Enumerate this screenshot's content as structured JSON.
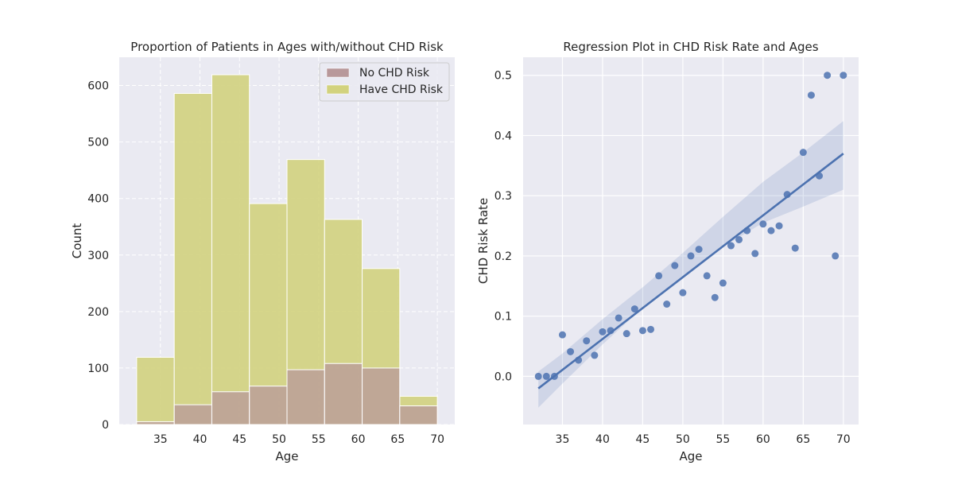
{
  "chart_data": [
    {
      "type": "bar",
      "title": "Proportion of Patients in Ages with/without CHD Risk",
      "xlabel": "Age",
      "ylabel": "Count",
      "xlim": [
        29.8,
        72.2
      ],
      "ylim": [
        0,
        650
      ],
      "xticks": [
        35,
        40,
        45,
        50,
        55,
        60,
        65,
        70
      ],
      "yticks": [
        0,
        100,
        200,
        300,
        400,
        500,
        600
      ],
      "grid": true,
      "legend_position": "top-right",
      "bins": [
        [
          32,
          36.75
        ],
        [
          36.75,
          41.5
        ],
        [
          41.5,
          46.25
        ],
        [
          46.25,
          51
        ],
        [
          51,
          55.75
        ],
        [
          55.75,
          60.5
        ],
        [
          60.5,
          65.25
        ],
        [
          65.25,
          70
        ]
      ],
      "series": [
        {
          "name": "No CHD Risk",
          "color": "#b8989a",
          "values": [
            5,
            35,
            58,
            68,
            97,
            108,
            100,
            33
          ]
        },
        {
          "name": "Have CHD Risk",
          "color": "#d2d27e",
          "values": [
            119,
            586,
            619,
            391,
            469,
            363,
            276,
            50
          ]
        }
      ]
    },
    {
      "type": "scatter",
      "title": "Regression Plot in CHD Risk Rate and Ages",
      "xlabel": "Age",
      "ylabel": "CHD Risk Rate",
      "xlim": [
        30.1,
        71.9
      ],
      "ylim": [
        -0.08,
        0.53
      ],
      "xticks": [
        35,
        40,
        45,
        50,
        55,
        60,
        65,
        70
      ],
      "yticks": [
        0.0,
        0.1,
        0.2,
        0.3,
        0.4,
        0.5
      ],
      "grid": true,
      "point_color": "#4c72b0",
      "points": [
        [
          32,
          0.0
        ],
        [
          33,
          0.0
        ],
        [
          34,
          0.0
        ],
        [
          35,
          0.069
        ],
        [
          36,
          0.041
        ],
        [
          37,
          0.027
        ],
        [
          38,
          0.059
        ],
        [
          39,
          0.035
        ],
        [
          40,
          0.074
        ],
        [
          41,
          0.076
        ],
        [
          42,
          0.097
        ],
        [
          43,
          0.071
        ],
        [
          44,
          0.112
        ],
        [
          45,
          0.076
        ],
        [
          46,
          0.078
        ],
        [
          47,
          0.167
        ],
        [
          48,
          0.12
        ],
        [
          49,
          0.184
        ],
        [
          50,
          0.139
        ],
        [
          51,
          0.2
        ],
        [
          52,
          0.211
        ],
        [
          53,
          0.167
        ],
        [
          54,
          0.131
        ],
        [
          55,
          0.155
        ],
        [
          56,
          0.217
        ],
        [
          57,
          0.227
        ],
        [
          58,
          0.242
        ],
        [
          59,
          0.204
        ],
        [
          60,
          0.253
        ],
        [
          61,
          0.242
        ],
        [
          62,
          0.25
        ],
        [
          63,
          0.302
        ],
        [
          64,
          0.213
        ],
        [
          65,
          0.372
        ],
        [
          66,
          0.467
        ],
        [
          67,
          0.333
        ],
        [
          68,
          0.5
        ],
        [
          69,
          0.2
        ],
        [
          70,
          0.5
        ]
      ],
      "regression_line": {
        "x": [
          32,
          70
        ],
        "y": [
          -0.02,
          0.37
        ]
      },
      "confidence_band": {
        "x": [
          32,
          35,
          40,
          45,
          50,
          55,
          60,
          65,
          70
        ],
        "lower": [
          -0.052,
          -0.012,
          0.053,
          0.114,
          0.167,
          0.215,
          0.255,
          0.282,
          0.31
        ],
        "upper": [
          0.008,
          0.038,
          0.095,
          0.148,
          0.205,
          0.265,
          0.323,
          0.372,
          0.424
        ]
      }
    }
  ]
}
